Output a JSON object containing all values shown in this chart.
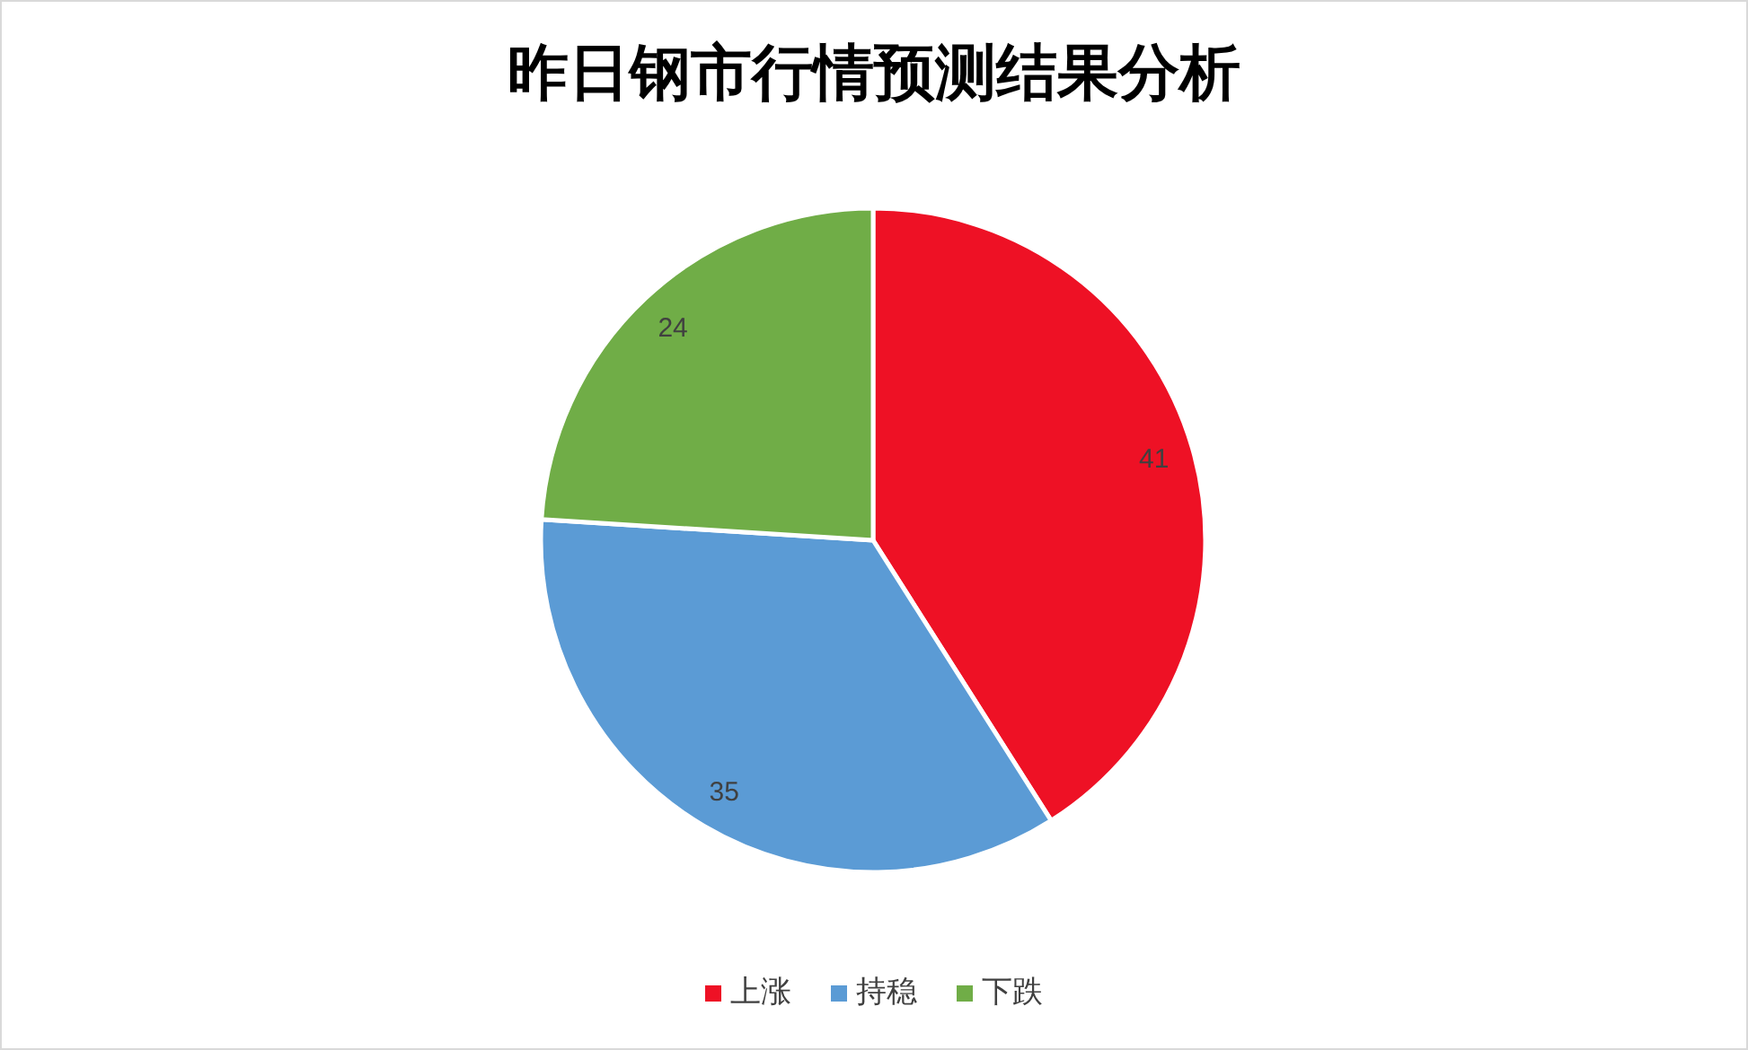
{
  "chart_data": {
    "type": "pie",
    "title": "昨日钢市行情预测结果分析",
    "categories": [
      "上涨",
      "持稳",
      "下跌"
    ],
    "values": [
      41,
      35,
      24
    ],
    "colors": [
      "#ee1125",
      "#5b9bd5",
      "#70ad47"
    ],
    "data_labels": true,
    "legend": "bottom"
  }
}
